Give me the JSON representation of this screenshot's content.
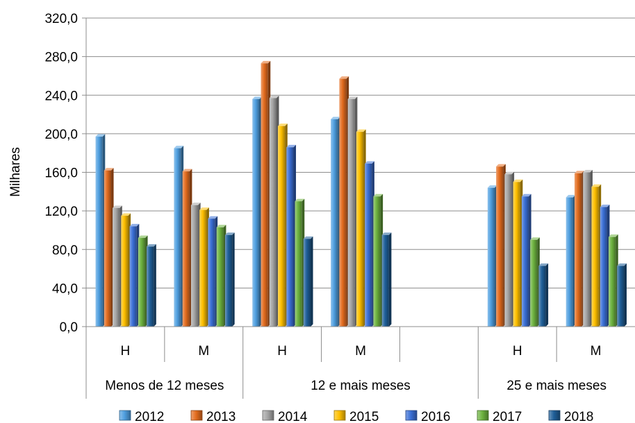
{
  "chart_data": {
    "type": "bar",
    "ylabel": "Milhares",
    "ylim": [
      0,
      320
    ],
    "y_ticks": [
      "0,0",
      "40,0",
      "80,0",
      "120,0",
      "160,0",
      "200,0",
      "240,0",
      "280,0",
      "320,0"
    ],
    "grid": true,
    "legend_position": "bottom",
    "groups": [
      {
        "label": "Menos de 12 meses",
        "categories": [
          "H",
          "M"
        ]
      },
      {
        "label": "12 e mais meses",
        "categories": [
          "H",
          "M",
          ""
        ]
      },
      {
        "label": "25 e mais meses",
        "categories": [
          "H",
          "M"
        ]
      }
    ],
    "categories": [
      "H",
      "M",
      "H",
      "M",
      "",
      "H",
      "M"
    ],
    "series": [
      {
        "name": "2012",
        "color": "#4f9fe0",
        "values": [
          197,
          185,
          236,
          215,
          null,
          144,
          134
        ]
      },
      {
        "name": "2013",
        "color": "#e36c1e",
        "values": [
          162,
          161,
          273,
          257,
          null,
          166,
          159
        ]
      },
      {
        "name": "2014",
        "color": "#a6a6a6",
        "values": [
          123,
          126,
          237,
          236,
          null,
          158,
          160
        ]
      },
      {
        "name": "2015",
        "color": "#ffc000",
        "values": [
          115,
          121,
          208,
          202,
          null,
          150,
          145
        ]
      },
      {
        "name": "2016",
        "color": "#3a6fd6",
        "values": [
          104,
          112,
          186,
          169,
          null,
          135,
          124
        ]
      },
      {
        "name": "2017",
        "color": "#6db33f",
        "values": [
          92,
          103,
          130,
          135,
          null,
          90,
          93
        ]
      },
      {
        "name": "2018",
        "color": "#1f5f99",
        "values": [
          83,
          95,
          91,
          95,
          null,
          63,
          63
        ]
      }
    ]
  }
}
